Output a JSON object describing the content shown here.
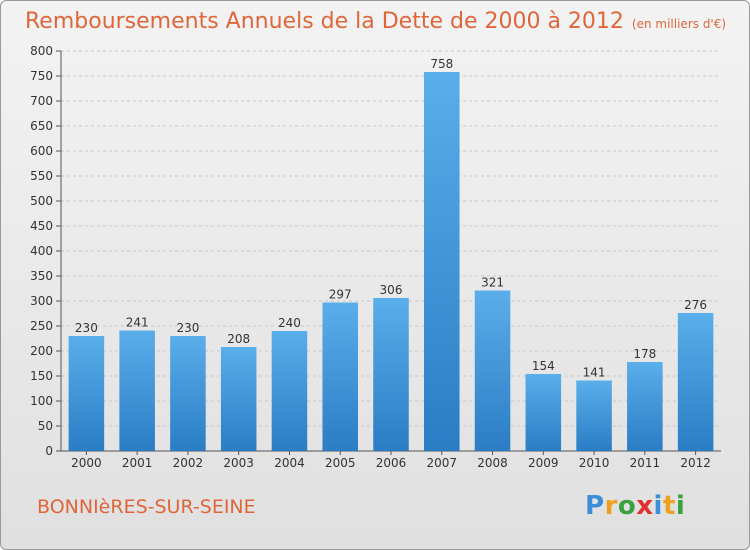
{
  "chart_data": {
    "type": "bar",
    "title": "Remboursements Annuels de la Dette de 2000 à 2012",
    "unit_label": "(en milliers d'€)",
    "categories": [
      "2000",
      "2001",
      "2002",
      "2003",
      "2004",
      "2005",
      "2006",
      "2007",
      "2008",
      "2009",
      "2010",
      "2011",
      "2012"
    ],
    "values": [
      230,
      241,
      230,
      208,
      240,
      297,
      306,
      758,
      321,
      154,
      141,
      178,
      276
    ],
    "ylim": [
      0,
      800
    ],
    "yticks": [
      0,
      50,
      100,
      150,
      200,
      250,
      300,
      350,
      400,
      450,
      500,
      550,
      600,
      650,
      700,
      750,
      800
    ],
    "grid": true,
    "bar_color": "#3a8fd6"
  },
  "commune": "BONNIèRES-SUR-SEINE",
  "logo": {
    "letters": [
      "P",
      "r",
      "o",
      "x",
      "i",
      "t",
      "i"
    ],
    "colors": [
      "#3a8fd6",
      "#f0a020",
      "#3aa040",
      "#e03030",
      "#3a8fd6",
      "#f0a020",
      "#3aa040"
    ]
  }
}
